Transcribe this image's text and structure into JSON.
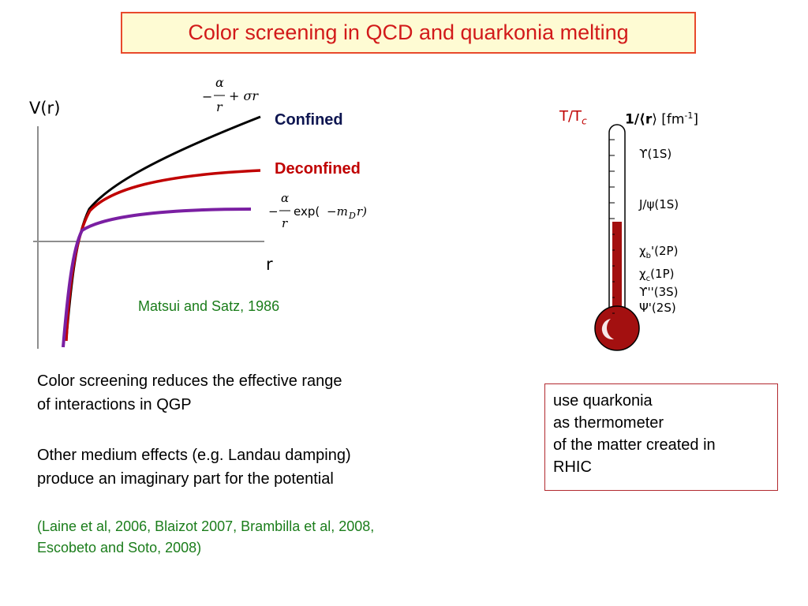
{
  "slide": {
    "title": "Color screening in QCD and quarkonia melting"
  },
  "plot": {
    "y_axis_label": "V(r)",
    "x_axis_label": "r",
    "formula_confined": {
      "prefix": "−",
      "numer": "α",
      "denom": "r",
      "suffix": "+ σr"
    },
    "formula_deconfined": {
      "prefix": "−",
      "numer": "α",
      "denom": "r",
      "func": "exp(",
      "arg": "−m",
      "arg_sub": "D",
      "tail": "r)"
    },
    "label_confined": "Confined",
    "label_deconfined": "Deconfined",
    "citation": "Matsui and Satz, 1986",
    "colors": {
      "confined": "#000000",
      "deconfined": "#c00000",
      "screened": "#7a1fa2",
      "axes": "#8e8e8e"
    }
  },
  "thermometer": {
    "header_left_main": "T/T",
    "header_left_sub": "c",
    "header_right_prefix": "1/⟨",
    "header_right_bold": "r",
    "header_right_suffix": "⟩ [fm",
    "header_right_sup": "-1",
    "header_right_close": "]",
    "states": [
      {
        "main": "ϒ(1S)"
      },
      {
        "main": "J/ψ(1S)"
      },
      {
        "main": "χ",
        "sub": "b",
        "rest": "'(2P)"
      },
      {
        "main": "χ",
        "sub": "c",
        "rest": "(1P)"
      },
      {
        "main": "ϒ''(3S)"
      },
      {
        "main": "Ψ'(2S)"
      }
    ],
    "colors": {
      "header": "#c00000",
      "mercury": "#a31010"
    }
  },
  "body": {
    "para1_line1": "Color screening reduces the effective range",
    "para1_line2": "of interactions in QGP",
    "para2_line1": "Other medium effects (e.g. Landau damping)",
    "para2_line2": "produce an imaginary part for the potential",
    "refs_line1": "(Laine et al, 2006, Blaizot 2007, Brambilla et al, 2008,",
    "refs_line2": "Escobeto and Soto, 2008)"
  },
  "note": {
    "lines": [
      "use quarkonia",
      "as thermometer",
      "of the matter created in",
      "RHIC"
    ]
  }
}
